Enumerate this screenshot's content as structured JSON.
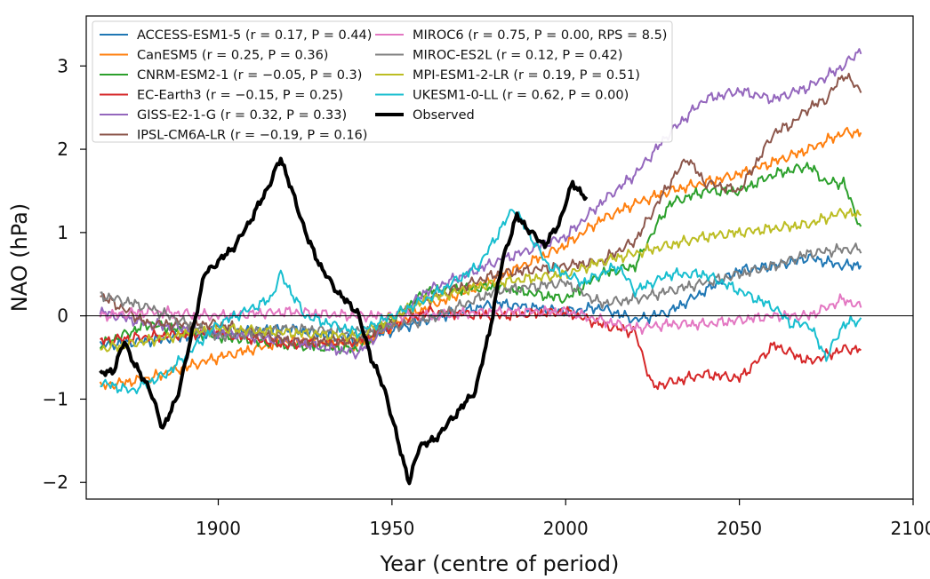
{
  "chart_data": {
    "type": "line",
    "title": "",
    "xlabel": "Year (centre of period)",
    "ylabel": "NAO (hPa)",
    "xlim": [
      1862,
      2100
    ],
    "ylim": [
      -2.2,
      3.6
    ],
    "xticks": [
      1900,
      1950,
      2000,
      2050,
      2100
    ],
    "yticks": [
      -2,
      -1,
      0,
      1,
      2,
      3
    ],
    "ytick_labels": [
      "−2",
      "−1",
      "0",
      "1",
      "2",
      "3"
    ],
    "zero_line": true,
    "grid": false,
    "legend_position": "top-left",
    "series": [
      {
        "name": "ACCESS-ESM1-5",
        "stats_label": "ACCESS-ESM1-5 (r = 0.17, P = 0.44)",
        "color": "#1f77b4",
        "x": [
          1866,
          1880,
          1900,
          1920,
          1940,
          1960,
          1980,
          2000,
          2010,
          2020,
          2030,
          2040,
          2050,
          2060,
          2070,
          2080,
          2085
        ],
        "values": [
          -0.35,
          -0.3,
          -0.2,
          -0.15,
          -0.3,
          -0.05,
          0.15,
          0.05,
          0.1,
          -0.05,
          0.05,
          0.3,
          0.55,
          0.6,
          0.7,
          0.6,
          0.62
        ]
      },
      {
        "name": "CanESM5",
        "stats_label": "CanESM5 (r = 0.25, P = 0.36)",
        "color": "#ff7f0e",
        "x": [
          1866,
          1880,
          1900,
          1920,
          1940,
          1960,
          1980,
          2000,
          2010,
          2020,
          2030,
          2040,
          2050,
          2060,
          2070,
          2080,
          2085
        ],
        "values": [
          -0.85,
          -0.75,
          -0.5,
          -0.3,
          -0.35,
          0.1,
          0.45,
          0.85,
          1.15,
          1.35,
          1.5,
          1.6,
          1.7,
          1.85,
          2.0,
          2.2,
          2.2
        ]
      },
      {
        "name": "CNRM-ESM2-1",
        "stats_label": "CNRM-ESM2-1 (r = −0.05, P = 0.3)",
        "color": "#2ca02c",
        "x": [
          1866,
          1880,
          1900,
          1920,
          1940,
          1960,
          1980,
          2000,
          2010,
          2020,
          2025,
          2030,
          2040,
          2050,
          2060,
          2070,
          2075,
          2080,
          2085
        ],
        "values": [
          -0.35,
          -0.1,
          -0.25,
          -0.35,
          -0.4,
          0.3,
          0.35,
          0.2,
          0.5,
          0.6,
          1.0,
          1.35,
          1.5,
          1.5,
          1.7,
          1.8,
          1.6,
          1.6,
          1.05
        ]
      },
      {
        "name": "EC-Earth3",
        "stats_label": "EC-Earth3 (r = −0.15, P = 0.25)",
        "color": "#d62728",
        "x": [
          1866,
          1880,
          1900,
          1920,
          1940,
          1960,
          1980,
          2000,
          2010,
          2020,
          2025,
          2030,
          2040,
          2050,
          2060,
          2070,
          2080,
          2085
        ],
        "values": [
          -0.3,
          -0.25,
          -0.2,
          -0.35,
          -0.3,
          0.05,
          0.0,
          0.05,
          -0.1,
          -0.2,
          -0.85,
          -0.8,
          -0.7,
          -0.75,
          -0.35,
          -0.55,
          -0.4,
          -0.4
        ]
      },
      {
        "name": "GISS-E2-1-G",
        "stats_label": "GISS-E2-1-G (r = 0.32, P = 0.33)",
        "color": "#9467bd",
        "x": [
          1866,
          1880,
          1900,
          1920,
          1940,
          1960,
          1980,
          2000,
          2010,
          2020,
          2030,
          2040,
          2050,
          2060,
          2070,
          2080,
          2085
        ],
        "values": [
          0.05,
          -0.1,
          -0.2,
          -0.3,
          -0.45,
          0.3,
          0.65,
          0.95,
          1.35,
          1.7,
          2.2,
          2.6,
          2.7,
          2.6,
          2.75,
          3.0,
          3.2
        ]
      },
      {
        "name": "IPSL-CM6A-LR",
        "stats_label": "IPSL-CM6A-LR (r = −0.19, P = 0.16)",
        "color": "#8c564b",
        "x": [
          1866,
          1880,
          1900,
          1920,
          1940,
          1960,
          1980,
          2000,
          2010,
          2020,
          2030,
          2035,
          2040,
          2050,
          2060,
          2065,
          2070,
          2075,
          2080,
          2085
        ],
        "values": [
          0.25,
          -0.1,
          -0.1,
          -0.3,
          -0.3,
          0.2,
          0.5,
          0.6,
          0.65,
          0.9,
          1.6,
          1.9,
          1.6,
          1.5,
          2.2,
          2.3,
          2.5,
          2.6,
          2.9,
          2.7
        ]
      },
      {
        "name": "MIROC6",
        "stats_label": "MIROC6 (r = 0.75, P = 0.00, RPS = 8.5)",
        "color": "#e377c2",
        "x": [
          1866,
          1880,
          1900,
          1920,
          1940,
          1960,
          1980,
          2000,
          2010,
          2020,
          2030,
          2040,
          2050,
          2060,
          2070,
          2080,
          2085
        ],
        "values": [
          0.0,
          0.05,
          0.0,
          0.05,
          0.0,
          0.0,
          0.05,
          0.05,
          -0.05,
          -0.15,
          -0.1,
          -0.1,
          -0.05,
          0.0,
          0.0,
          0.2,
          0.1
        ]
      },
      {
        "name": "MIROC-ES2L",
        "stats_label": "MIROC-ES2L (r = 0.12, P = 0.42)",
        "color": "#7f7f7f",
        "x": [
          1866,
          1880,
          1900,
          1920,
          1940,
          1960,
          1980,
          2000,
          2010,
          2020,
          2030,
          2040,
          2050,
          2060,
          2070,
          2080,
          2085
        ],
        "values": [
          0.25,
          0.1,
          -0.25,
          -0.15,
          -0.2,
          -0.05,
          0.3,
          0.4,
          0.15,
          0.2,
          0.3,
          0.4,
          0.5,
          0.6,
          0.75,
          0.8,
          0.8
        ]
      },
      {
        "name": "MPI-ESM1-2-LR",
        "stats_label": "MPI-ESM1-2-LR (r = 0.19, P = 0.51)",
        "color": "#bcbd22",
        "x": [
          1866,
          1880,
          1900,
          1920,
          1940,
          1960,
          1980,
          2000,
          2010,
          2020,
          2030,
          2040,
          2050,
          2060,
          2070,
          2080,
          2085
        ],
        "values": [
          -0.4,
          -0.3,
          -0.15,
          -0.2,
          -0.25,
          0.2,
          0.4,
          0.5,
          0.65,
          0.75,
          0.85,
          0.95,
          1.0,
          1.05,
          1.1,
          1.25,
          1.2
        ]
      },
      {
        "name": "UKESM1-0-LL",
        "stats_label": "UKESM1-0-LL (r = 0.62, P = 0.00)",
        "color": "#17becf",
        "x": [
          1866,
          1875,
          1885,
          1900,
          1915,
          1918,
          1925,
          1940,
          1960,
          1975,
          1985,
          1995,
          2005,
          2015,
          2020,
          2030,
          2040,
          2050,
          2060,
          2065,
          2070,
          2075,
          2080,
          2085
        ],
        "values": [
          -0.8,
          -0.9,
          -0.7,
          -0.1,
          0.2,
          0.5,
          0.0,
          -0.2,
          0.2,
          0.6,
          1.3,
          0.6,
          0.4,
          0.6,
          0.3,
          0.5,
          0.5,
          0.3,
          0.1,
          -0.1,
          -0.1,
          -0.5,
          -0.1,
          -0.05
        ]
      },
      {
        "name": "Observed",
        "stats_label": "Observed",
        "color": "#000000",
        "x": [
          1866,
          1870,
          1873,
          1876,
          1880,
          1884,
          1888,
          1892,
          1896,
          1900,
          1905,
          1910,
          1915,
          1918,
          1922,
          1926,
          1930,
          1935,
          1940,
          1944,
          1948,
          1952,
          1955,
          1958,
          1962,
          1966,
          1970,
          1974,
          1978,
          1982,
          1986,
          1990,
          1994,
          1998,
          2002,
          2006
        ],
        "values": [
          -0.7,
          -0.65,
          -0.3,
          -0.6,
          -0.85,
          -1.35,
          -1.0,
          -0.3,
          0.5,
          0.65,
          0.85,
          1.2,
          1.6,
          1.9,
          1.4,
          0.9,
          0.55,
          0.25,
          0.05,
          -0.5,
          -0.9,
          -1.55,
          -2.0,
          -1.55,
          -1.5,
          -1.3,
          -1.1,
          -0.9,
          -0.2,
          0.7,
          1.2,
          1.0,
          0.85,
          1.1,
          1.6,
          1.4
        ]
      }
    ]
  }
}
